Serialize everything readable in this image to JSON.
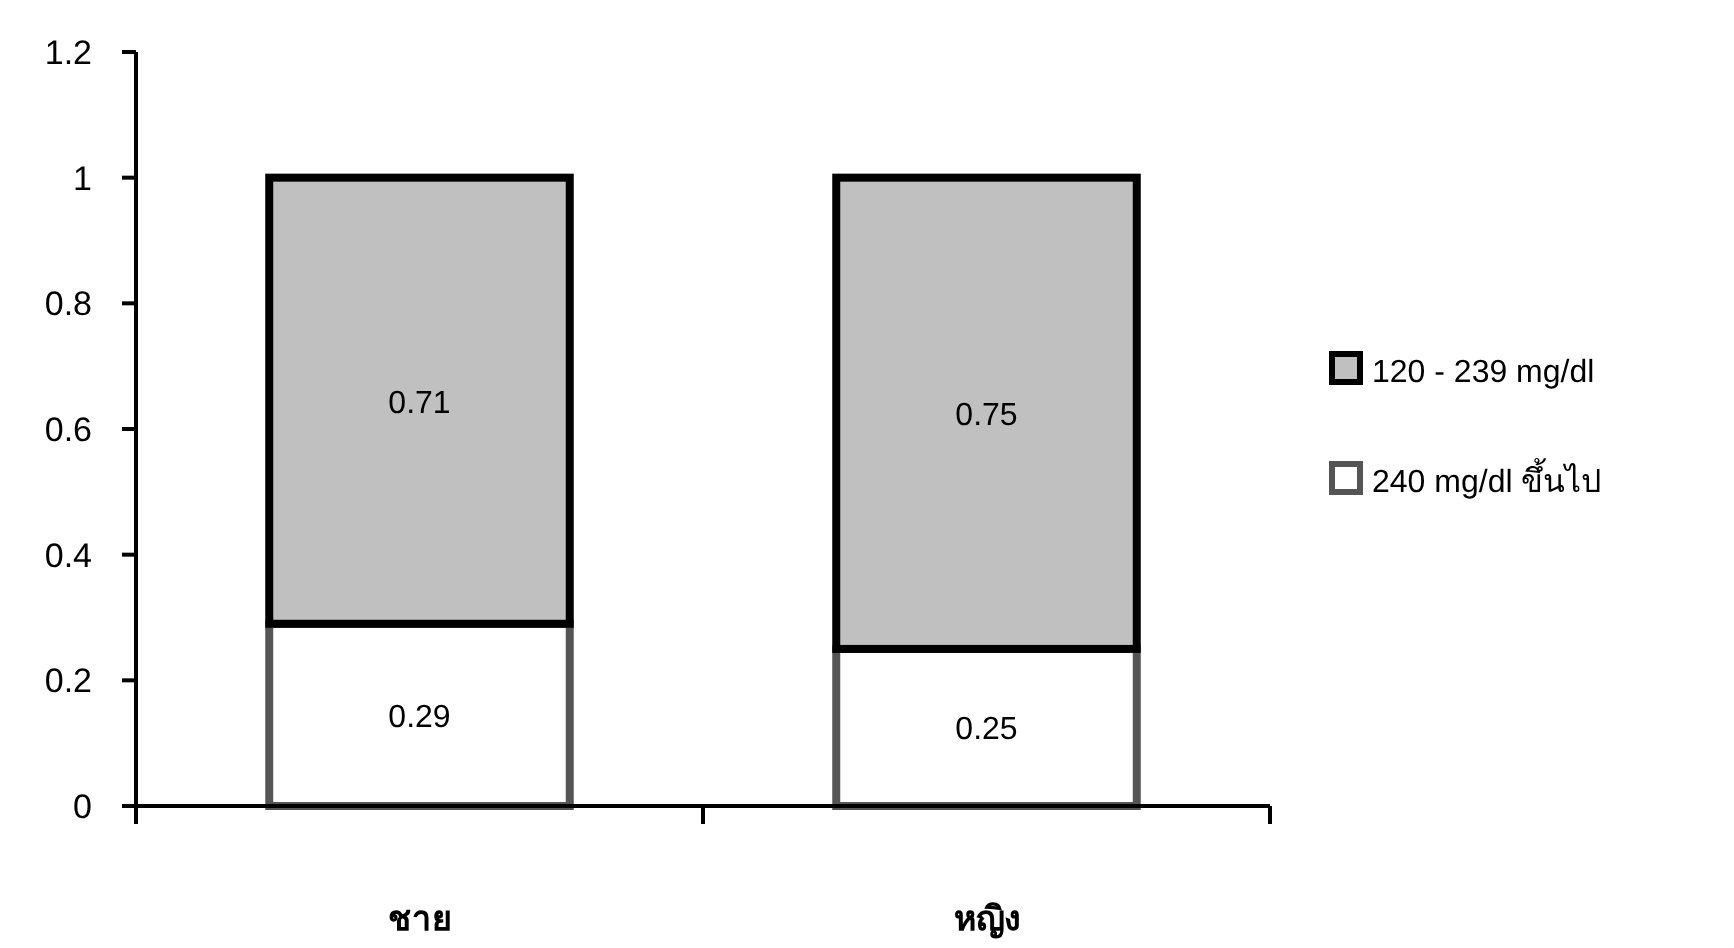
{
  "chart_data": {
    "type": "bar",
    "stacked": true,
    "categories": [
      "ชาย",
      "หญิง"
    ],
    "series": [
      {
        "name": "240  mg/dl ขึ้นไป",
        "color": "#ffffff",
        "values": [
          0.29,
          0.25
        ]
      },
      {
        "name": "120 - 239 mg/dl",
        "color": "#c0c0c0",
        "values": [
          0.71,
          0.75
        ]
      }
    ],
    "ylim": [
      0,
      1.2
    ],
    "yticks": [
      0,
      0.2,
      0.4,
      0.6,
      0.8,
      1,
      1.2
    ],
    "data_labels": true,
    "grid": false,
    "legend": "right"
  }
}
